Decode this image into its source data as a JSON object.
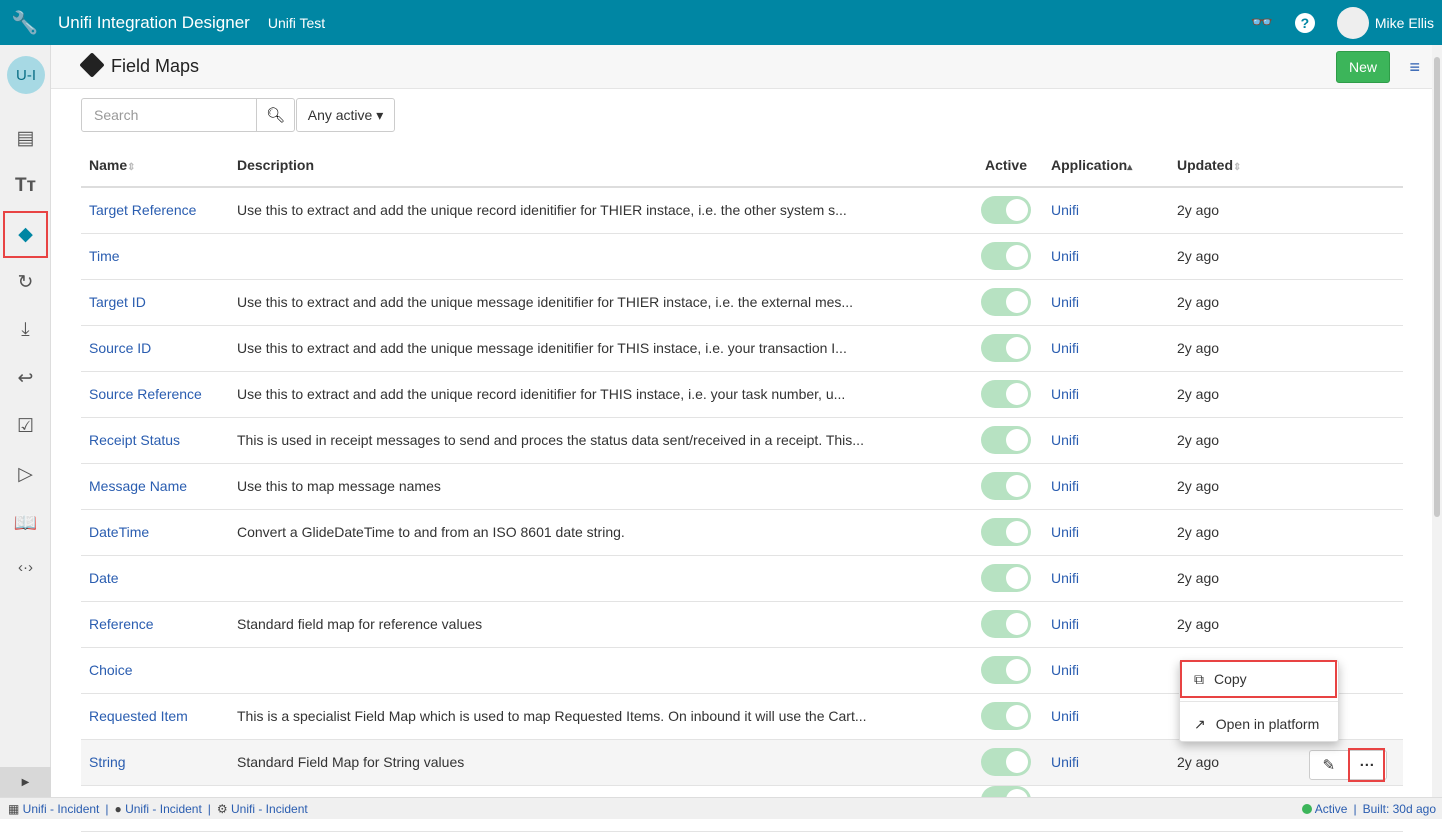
{
  "app": {
    "title": "Unifi Integration Designer",
    "instance": "Unifi Test",
    "user": "Mike Ellis",
    "badge": "U-I"
  },
  "page": {
    "title": "Field Maps",
    "new_label": "New"
  },
  "search": {
    "placeholder": "Search",
    "filter_label": "Any active ▾"
  },
  "columns": {
    "name": "Name",
    "description": "Description",
    "active": "Active",
    "application": "Application",
    "updated": "Updated"
  },
  "rows": [
    {
      "name": "Target Reference",
      "description": "Use this to extract and add the unique record idenitifier for THIER instace, i.e. the other system s...",
      "active": true,
      "application": "Unifi",
      "updated": "2y ago"
    },
    {
      "name": "Time",
      "description": "",
      "active": true,
      "application": "Unifi",
      "updated": "2y ago"
    },
    {
      "name": "Target ID",
      "description": "Use this to extract and add the unique message idenitifier for THIER instace, i.e. the external mes...",
      "active": true,
      "application": "Unifi",
      "updated": "2y ago"
    },
    {
      "name": "Source ID",
      "description": "Use this to extract and add the unique message idenitifier for THIS instace, i.e. your transaction I...",
      "active": true,
      "application": "Unifi",
      "updated": "2y ago"
    },
    {
      "name": "Source Reference",
      "description": "Use this to extract and add the unique record idenitifier for THIS instace, i.e. your task number, u...",
      "active": true,
      "application": "Unifi",
      "updated": "2y ago"
    },
    {
      "name": "Receipt Status",
      "description": "This is used in receipt messages to send and proces the status data sent/received in a receipt. This...",
      "active": true,
      "application": "Unifi",
      "updated": "2y ago"
    },
    {
      "name": "Message Name",
      "description": "Use this to map message names",
      "active": true,
      "application": "Unifi",
      "updated": "2y ago"
    },
    {
      "name": "DateTime",
      "description": "Convert a GlideDateTime to and from an ISO 8601 date string.",
      "active": true,
      "application": "Unifi",
      "updated": "2y ago"
    },
    {
      "name": "Date",
      "description": "",
      "active": true,
      "application": "Unifi",
      "updated": "2y ago"
    },
    {
      "name": "Reference",
      "description": "Standard field map for reference values",
      "active": true,
      "application": "Unifi",
      "updated": "2y ago"
    },
    {
      "name": "Choice",
      "description": "",
      "active": true,
      "application": "Unifi",
      "updated": ""
    },
    {
      "name": "Requested Item",
      "description": "This is a specialist Field Map which is used to map Requested Items. On inbound it will use the Cart...",
      "active": true,
      "application": "Unifi",
      "updated": ""
    },
    {
      "name": "String",
      "description": "Standard Field Map for String values",
      "active": true,
      "application": "Unifi",
      "updated": "2y ago"
    }
  ],
  "menu": {
    "copy": "Copy",
    "open": "Open in platform"
  },
  "status": {
    "item1": "Unifi - Incident",
    "item2": "Unifi - Incident",
    "item3": "Unifi - Incident",
    "active": "Active",
    "built": "Built: 30d ago"
  },
  "colors": {
    "topbar": "#0086a3",
    "new_button": "#3cb55a",
    "highlight": "#e84343",
    "link": "#2a5db0"
  }
}
